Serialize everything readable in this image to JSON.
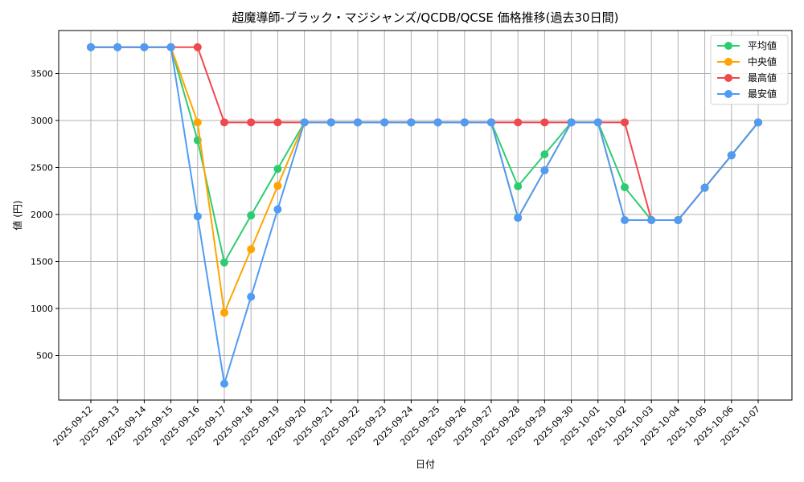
{
  "chart_data": {
    "type": "line",
    "title": "超魔導師-ブラック・マジシャンズ/QCDB/QCSE 価格推移(過去30日間)",
    "xlabel": "日付",
    "ylabel": "値 (円)",
    "x": [
      "2025-09-12",
      "2025-09-13",
      "2025-09-14",
      "2025-09-15",
      "2025-09-16",
      "2025-09-17",
      "2025-09-18",
      "2025-09-19",
      "2025-09-20",
      "2025-09-21",
      "2025-09-22",
      "2025-09-23",
      "2025-09-24",
      "2025-09-25",
      "2025-09-26",
      "2025-09-27",
      "2025-09-28",
      "2025-09-29",
      "2025-09-30",
      "2025-10-01",
      "2025-10-02",
      "2025-10-03",
      "2025-10-04",
      "2025-10-05",
      "2025-10-06",
      "2025-10-07"
    ],
    "yticks": [
      500,
      1000,
      1500,
      2000,
      2500,
      3000,
      3500
    ],
    "ylim": [
      100,
      3880
    ],
    "grid": true,
    "legend_position": "upper right",
    "series": [
      {
        "name": "平均値",
        "color": "#2ecc71",
        "values": [
          3780,
          3780,
          3780,
          3780,
          2790,
          1490,
          1990,
          2485,
          2980,
          2980,
          2980,
          2980,
          2980,
          2980,
          2980,
          2980,
          2300,
          2640,
          2980,
          2980,
          2290,
          1940,
          1940,
          2285,
          2630,
          2980
        ]
      },
      {
        "name": "中央値",
        "color": "#ffa500",
        "values": [
          3780,
          3780,
          3780,
          3780,
          2980,
          955,
          1630,
          2305,
          2980,
          2980,
          2980,
          2980,
          2980,
          2980,
          2980,
          2980,
          1965,
          2470,
          2980,
          2980,
          1940,
          1940,
          1940,
          2285,
          2630,
          2980
        ]
      },
      {
        "name": "最高値",
        "color": "#f0484f",
        "values": [
          3780,
          3780,
          3780,
          3780,
          3780,
          2980,
          2980,
          2980,
          2980,
          2980,
          2980,
          2980,
          2980,
          2980,
          2980,
          2980,
          2980,
          2980,
          2980,
          2980,
          2980,
          1940,
          1940,
          2285,
          2630,
          2980
        ]
      },
      {
        "name": "最安値",
        "color": "#4f9cf5",
        "values": [
          3780,
          3780,
          3780,
          3780,
          1980,
          200,
          1125,
          2055,
          2980,
          2980,
          2980,
          2980,
          2980,
          2980,
          2980,
          2980,
          1965,
          2470,
          2980,
          2980,
          1940,
          1940,
          1940,
          2285,
          2630,
          2980
        ]
      }
    ]
  }
}
